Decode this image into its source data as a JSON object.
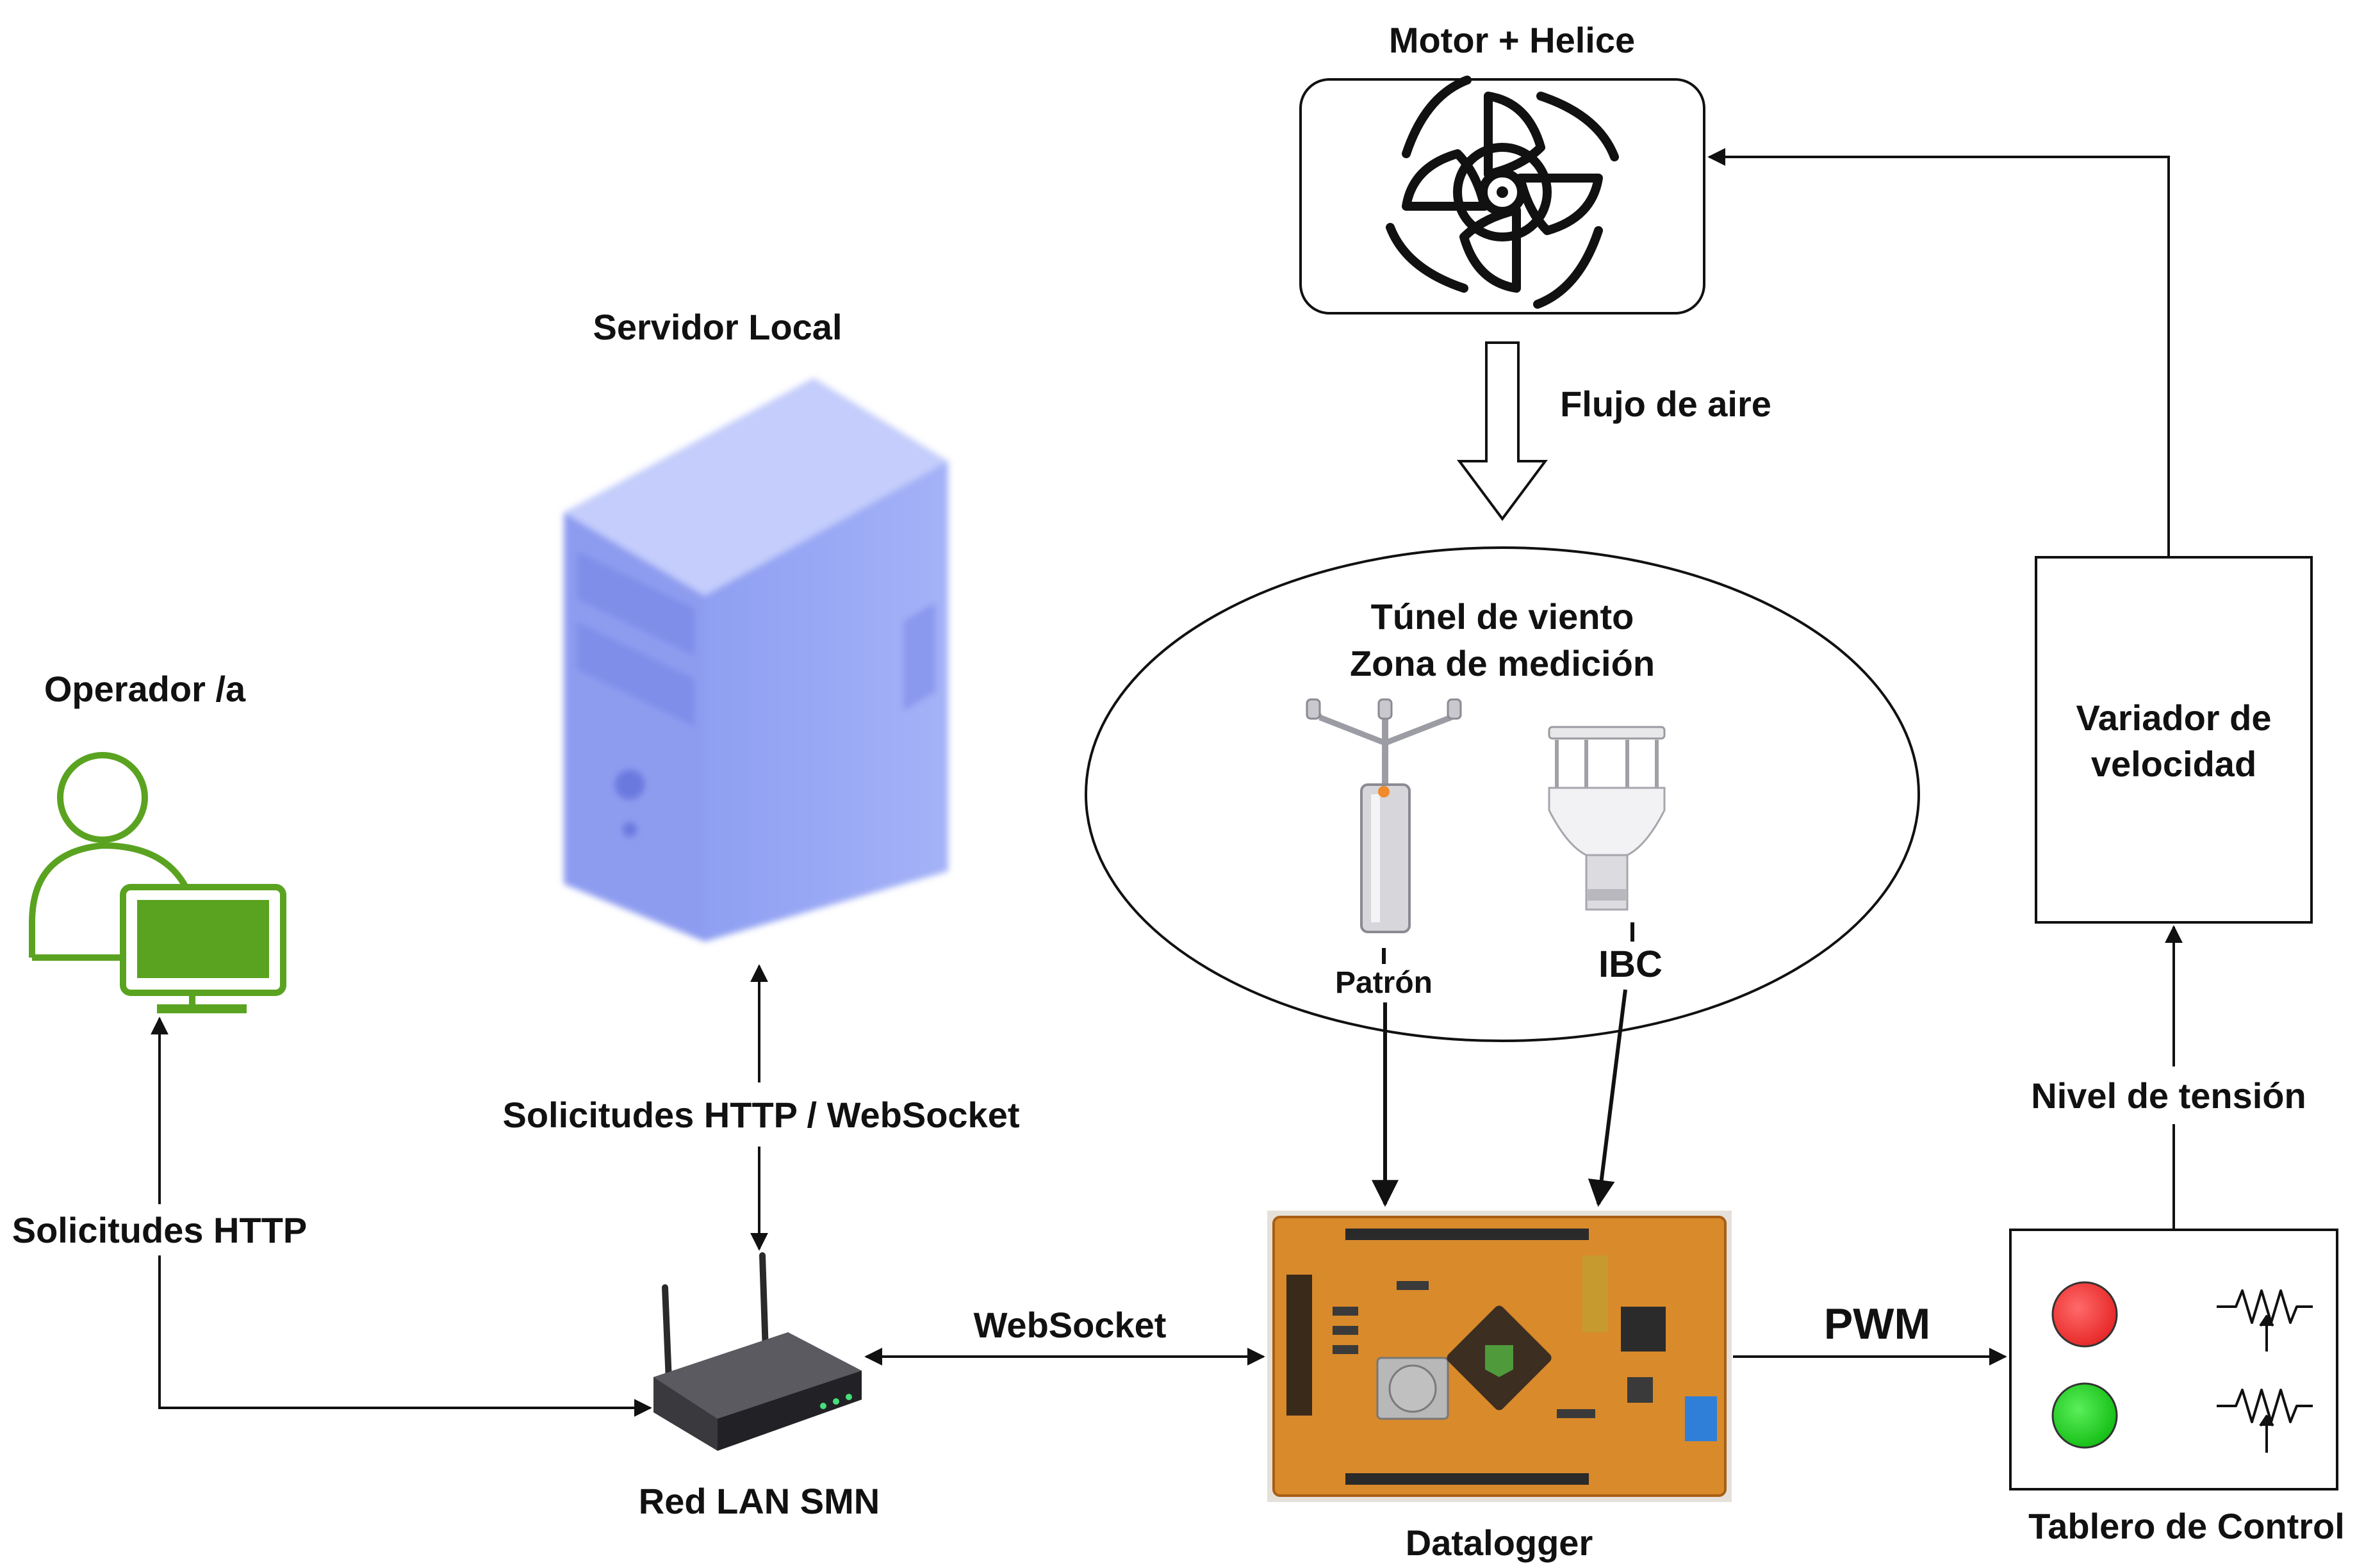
{
  "labels": {
    "motor": "Motor + Helice",
    "flow": "Flujo de aire",
    "tunnel_line1": "Túnel de viento",
    "tunnel_line2": "Zona de medición",
    "patron": "Patrón",
    "ibc": "IBC",
    "server": "Servidor Local",
    "operator": "Operador /a",
    "http_ws": "Solicitudes HTTP / WebSocket",
    "http": "Solicitudes HTTP",
    "websocket": "WebSocket",
    "pwm": "PWM",
    "router": "Red LAN SMN",
    "datalogger": "Datalogger",
    "variador_line1": "Variador de",
    "variador_line2": "velocidad",
    "tension": "Nivel de tensión",
    "tablero": "Tablero de Control"
  },
  "icons": {
    "motor": "fan-propeller-icon",
    "server": "server-tower-icon",
    "operator": "operator-computer-icon",
    "router": "wifi-router-icon",
    "datalogger": "circuit-board-icon",
    "patron_sensor": "ultrasonic-anemometer-icon",
    "ibc_sensor": "weather-sensor-icon",
    "red_light": "red-indicator-icon",
    "green_light": "green-indicator-icon",
    "potentiometer": "potentiometer-icon"
  },
  "colors": {
    "operator_green": "#5aa321",
    "server_blue": "#9aaaf5",
    "board_orange": "#d98a2b",
    "indicator_red": "#f03a3a",
    "indicator_green": "#22cc22"
  }
}
